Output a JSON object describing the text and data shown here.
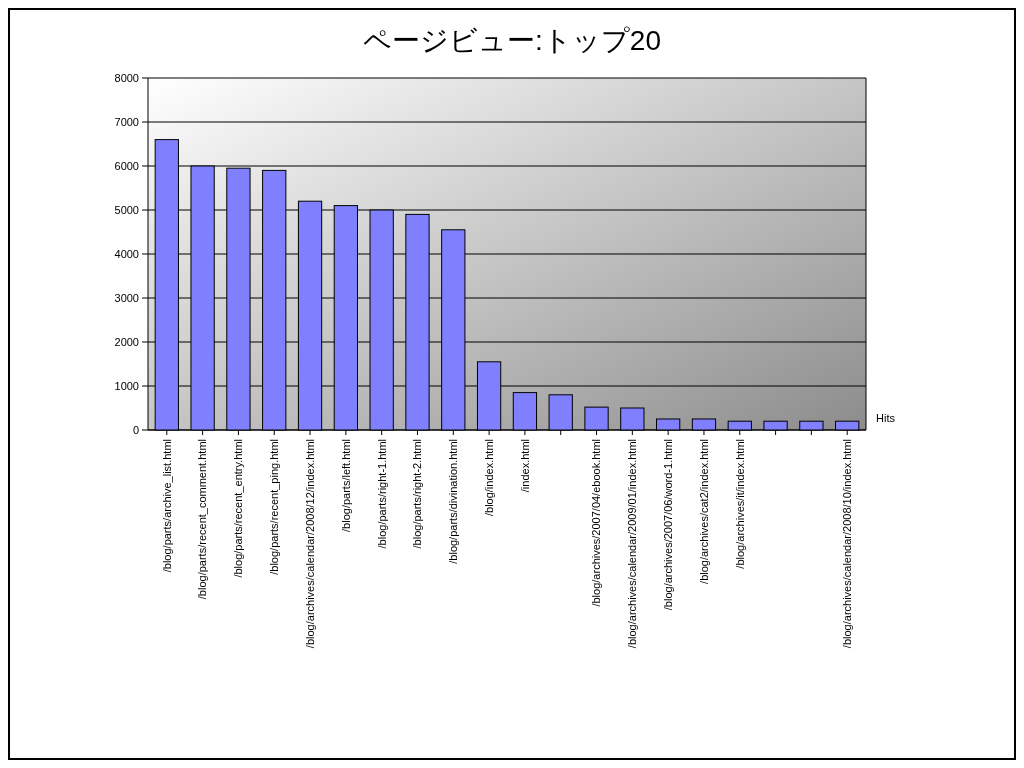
{
  "chart_data": {
    "type": "bar",
    "title": "ページビュー:トップ20",
    "categories": [
      "/blog/parts/archive_list.html",
      "/blog/parts/recent_comment.html",
      "/blog/parts/recent_entry.html",
      "/blog/parts/recent_ping.html",
      "/blog/archives/calendar/2008/12/index.html",
      "/blog/parts/left.html",
      "/blog/parts/right-1.html",
      "/blog/parts/right-2.html",
      "/blog/parts/divination.html",
      "/blog/index.html",
      "/index.html",
      null,
      "/blog/archives/2007/04/ebook.html",
      "/blog/archives/calendar/2009/01/index.html",
      "/blog/archives/2007/06/word-1.html",
      "/blog/archives/cat2/index.html",
      "/blog/archives/it/index.html",
      null,
      null,
      "/blog/archives/calendar/2008/10/index.html"
    ],
    "series": [
      {
        "name": "Hits",
        "color": "#8080ff",
        "values": [
          6600,
          6000,
          5950,
          5900,
          5200,
          5100,
          5000,
          4900,
          4550,
          1550,
          850,
          800,
          520,
          500,
          250,
          250,
          200,
          200,
          200,
          200
        ]
      }
    ],
    "ylim": [
      0,
      8000
    ],
    "yticks": [
      0,
      1000,
      2000,
      3000,
      4000,
      5000,
      6000,
      7000,
      8000
    ],
    "grid": true
  }
}
